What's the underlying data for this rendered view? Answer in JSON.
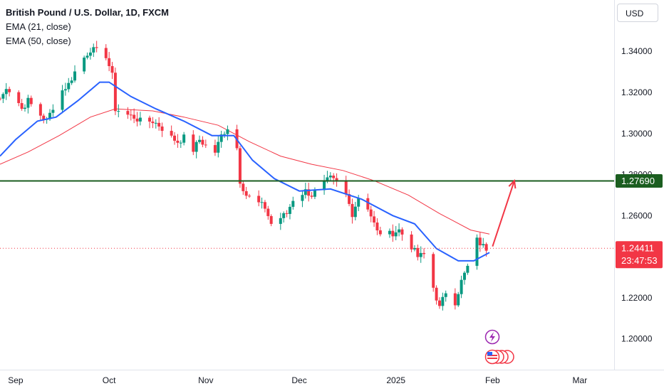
{
  "legend": {
    "title": "British Pound / U.S. Dollar, 1D, FXCM",
    "ema21": "EMA (21, close)",
    "ema50": "EMA (50, close)"
  },
  "currency_button": "USD",
  "colors": {
    "up": "#089981",
    "down": "#f23645",
    "ema21": "#2962ff",
    "ema50": "#f23645",
    "resistance": "#1b5e20",
    "arrow": "#f23645"
  },
  "chart_data": {
    "type": "candlestick",
    "y_ticks": [
      "1.34000",
      "1.32000",
      "1.30000",
      "1.28000",
      "1.26000",
      "1.22000",
      "1.20000"
    ],
    "x_ticks": [
      "Sep",
      "Oct",
      "Nov",
      "Dec",
      "2025",
      "Feb",
      "Mar"
    ],
    "ylim": [
      1.185,
      1.365
    ],
    "x_dates": [
      "2024-09-01",
      "2024-10-01",
      "2024-11-01",
      "2024-12-01",
      "2025-01-01",
      "2025-02-01",
      "2025-03-01"
    ],
    "resistance_level": "1.27690",
    "current_price": "1.24411",
    "countdown": "23:47:53",
    "close_path": [
      [
        "2024-08-27",
        1.317
      ],
      [
        "2024-08-28",
        1.319
      ],
      [
        "2024-08-29",
        1.323
      ],
      [
        "2024-08-30",
        1.321
      ],
      [
        "2024-09-02",
        1.315
      ],
      [
        "2024-09-03",
        1.312
      ],
      [
        "2024-09-05",
        1.316
      ],
      [
        "2024-09-06",
        1.314
      ],
      [
        "2024-09-09",
        1.309
      ],
      [
        "2024-09-11",
        1.306
      ],
      [
        "2024-09-13",
        1.313
      ],
      [
        "2024-09-16",
        1.321
      ],
      [
        "2024-09-18",
        1.324
      ],
      [
        "2024-09-20",
        1.33
      ],
      [
        "2024-09-23",
        1.337
      ],
      [
        "2024-09-25",
        1.341
      ],
      [
        "2024-09-27",
        1.34
      ],
      [
        "2024-09-30",
        1.338
      ],
      [
        "2024-10-02",
        1.328
      ],
      [
        "2024-10-03",
        1.312
      ],
      [
        "2024-10-07",
        1.309
      ],
      [
        "2024-10-09",
        1.308
      ],
      [
        "2024-10-11",
        1.306
      ],
      [
        "2024-10-15",
        1.306
      ],
      [
        "2024-10-17",
        1.304
      ],
      [
        "2024-10-21",
        1.298
      ],
      [
        "2024-10-23",
        1.296
      ],
      [
        "2024-10-25",
        1.298
      ],
      [
        "2024-10-28",
        1.292
      ],
      [
        "2024-10-30",
        1.297
      ],
      [
        "2024-11-01",
        1.294
      ],
      [
        "2024-11-04",
        1.291
      ],
      [
        "2024-11-06",
        1.299
      ],
      [
        "2024-11-08",
        1.303
      ],
      [
        "2024-11-11",
        1.293
      ],
      [
        "2024-11-12",
        1.277
      ],
      [
        "2024-11-14",
        1.27
      ],
      [
        "2024-11-18",
        1.266
      ],
      [
        "2024-11-20",
        1.264
      ],
      [
        "2024-11-22",
        1.256
      ],
      [
        "2024-11-25",
        1.259
      ],
      [
        "2024-11-27",
        1.261
      ],
      [
        "2024-11-29",
        1.268
      ],
      [
        "2024-12-03",
        1.272
      ],
      [
        "2024-12-05",
        1.27
      ],
      [
        "2024-12-09",
        1.276
      ],
      [
        "2024-12-11",
        1.278
      ],
      [
        "2024-12-13",
        1.276
      ],
      [
        "2024-12-16",
        1.27
      ],
      [
        "2024-12-18",
        1.261
      ],
      [
        "2024-12-20",
        1.269
      ],
      [
        "2024-12-23",
        1.264
      ],
      [
        "2024-12-26",
        1.252
      ],
      [
        "2024-12-30",
        1.251
      ],
      [
        "2025-01-02",
        1.253
      ],
      [
        "2025-01-06",
        1.245
      ],
      [
        "2025-01-08",
        1.24
      ],
      [
        "2025-01-10",
        1.241
      ],
      [
        "2025-01-13",
        1.225
      ],
      [
        "2025-01-15",
        1.215
      ],
      [
        "2025-01-17",
        1.223
      ],
      [
        "2025-01-20",
        1.218
      ],
      [
        "2025-01-22",
        1.228
      ],
      [
        "2025-01-24",
        1.235
      ],
      [
        "2025-01-27",
        1.248
      ],
      [
        "2025-01-29",
        1.245
      ],
      [
        "2025-01-30",
        1.2441
      ]
    ],
    "ema21_path": [
      [
        "2024-08-27",
        1.289
      ],
      [
        "2024-09-01",
        1.297
      ],
      [
        "2024-09-08",
        1.306
      ],
      [
        "2024-09-14",
        1.308
      ],
      [
        "2024-09-21",
        1.316
      ],
      [
        "2024-09-28",
        1.325
      ],
      [
        "2024-10-01",
        1.325
      ],
      [
        "2024-10-08",
        1.318
      ],
      [
        "2024-10-16",
        1.312
      ],
      [
        "2024-10-25",
        1.306
      ],
      [
        "2024-11-03",
        1.299
      ],
      [
        "2024-11-10",
        1.299
      ],
      [
        "2024-11-16",
        1.287
      ],
      [
        "2024-11-23",
        1.278
      ],
      [
        "2024-12-01",
        1.272
      ],
      [
        "2024-12-11",
        1.273
      ],
      [
        "2024-12-21",
        1.268
      ],
      [
        "2024-12-31",
        1.26
      ],
      [
        "2025-01-07",
        1.256
      ],
      [
        "2025-01-14",
        1.244
      ],
      [
        "2025-01-21",
        1.238
      ],
      [
        "2025-01-26",
        1.238
      ],
      [
        "2025-01-31",
        1.242
      ]
    ],
    "ema50_path": [
      [
        "2024-08-27",
        1.285
      ],
      [
        "2024-09-05",
        1.291
      ],
      [
        "2024-09-15",
        1.299
      ],
      [
        "2024-09-25",
        1.308
      ],
      [
        "2024-10-03",
        1.312
      ],
      [
        "2024-10-15",
        1.311
      ],
      [
        "2024-10-25",
        1.308
      ],
      [
        "2024-11-05",
        1.304
      ],
      [
        "2024-11-15",
        1.296
      ],
      [
        "2024-11-25",
        1.289
      ],
      [
        "2024-12-05",
        1.285
      ],
      [
        "2024-12-15",
        1.282
      ],
      [
        "2024-12-25",
        1.277
      ],
      [
        "2025-01-05",
        1.27
      ],
      [
        "2025-01-15",
        1.261
      ],
      [
        "2025-01-25",
        1.253
      ],
      [
        "2025-01-31",
        1.251
      ]
    ],
    "projection_arrow": [
      [
        "2025-02-01",
        1.245
      ],
      [
        "2025-02-08",
        1.277
      ]
    ]
  }
}
